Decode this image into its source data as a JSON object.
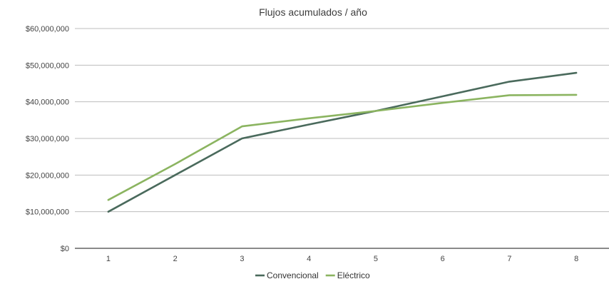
{
  "chart_data": {
    "type": "line",
    "title": "Flujos acumulados / año",
    "xlabel": "",
    "ylabel": "",
    "x": [
      1,
      2,
      3,
      4,
      5,
      6,
      7,
      8
    ],
    "y_ticks": [
      "$0",
      "$10,000,000",
      "$20,000,000",
      "$30,000,000",
      "$40,000,000",
      "$50,000,000",
      "$60,000,000"
    ],
    "ylim": [
      0,
      60000000
    ],
    "grid": true,
    "legend_position": "bottom",
    "series": [
      {
        "name": "Convencional",
        "color": "#4a6a5c",
        "values": [
          10000000,
          20000000,
          30000000,
          33800000,
          37500000,
          41500000,
          45500000,
          47900000
        ]
      },
      {
        "name": "Eléctrico",
        "color": "#8bb460",
        "values": [
          13200000,
          23000000,
          33300000,
          35500000,
          37500000,
          39700000,
          41800000,
          41900000
        ]
      }
    ]
  }
}
